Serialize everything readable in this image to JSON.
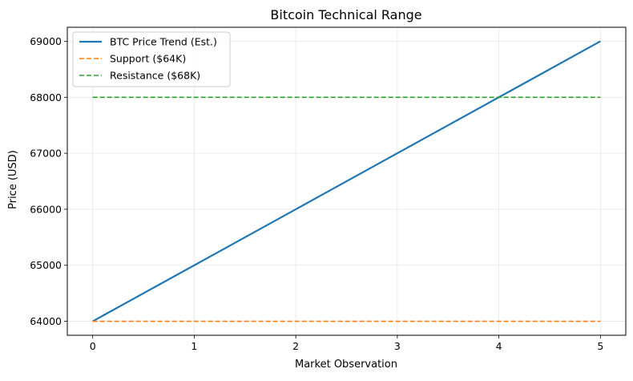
{
  "chart_data": {
    "type": "line",
    "title": "Bitcoin Technical Range",
    "xlabel": "Market Observation",
    "ylabel": "Price (USD)",
    "xlim": [
      -0.25,
      5.25
    ],
    "ylim": [
      63750,
      69250
    ],
    "x_ticks": [
      0,
      1,
      2,
      3,
      4,
      5
    ],
    "y_ticks": [
      64000,
      65000,
      66000,
      67000,
      68000,
      69000
    ],
    "grid": true,
    "legend_position": "top-left",
    "series": [
      {
        "name": "BTC Price Trend (Est.)",
        "x": [
          0,
          1,
          2,
          3,
          4,
          5
        ],
        "y": [
          64000,
          65000,
          66000,
          67000,
          68000,
          69000
        ],
        "color": "#1f77b4",
        "style": "solid"
      },
      {
        "name": "Support ($64K)",
        "x": [
          0,
          1,
          2,
          3,
          4,
          5
        ],
        "y": [
          64000,
          64000,
          64000,
          64000,
          64000,
          64000
        ],
        "color": "#ff7f0e",
        "style": "dashed"
      },
      {
        "name": "Resistance ($68K)",
        "x": [
          0,
          1,
          2,
          3,
          4,
          5
        ],
        "y": [
          68000,
          68000,
          68000,
          68000,
          68000,
          68000
        ],
        "color": "#2ca02c",
        "style": "dashed"
      }
    ]
  }
}
